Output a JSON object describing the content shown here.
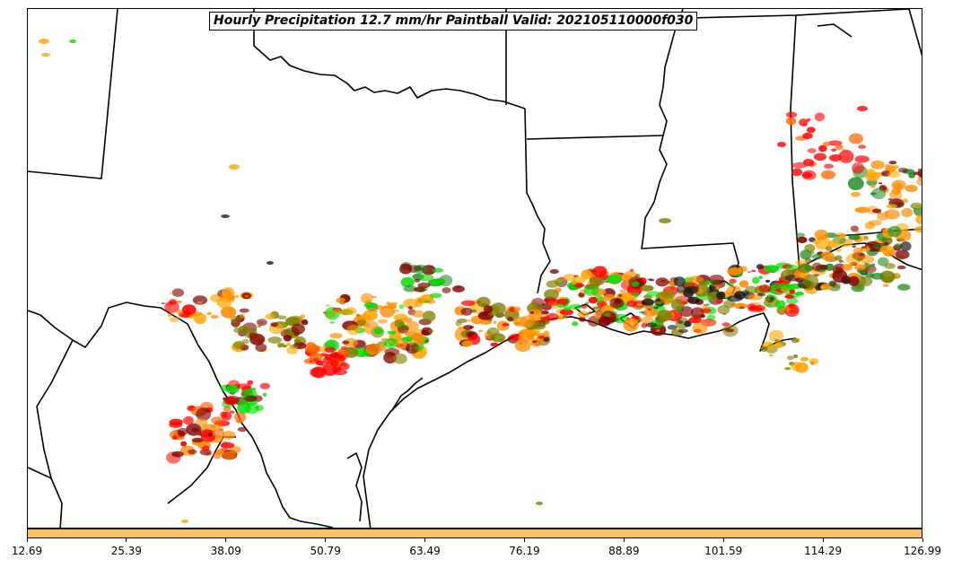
{
  "title": "Hourly Precipitation 12.7 mm/hr Paintball Valid: 202105110000f030",
  "colorbar": {
    "color": "#fbc062",
    "ticks": [
      "12.69",
      "25.39",
      "38.09",
      "50.79",
      "63.49",
      "76.19",
      "88.89",
      "101.59",
      "114.29",
      "126.99"
    ]
  },
  "paint_colors": [
    "#ff8c00",
    "#ff0000",
    "#808000",
    "#800000",
    "#00dd00",
    "#228b22",
    "#ffa500",
    "#ff6600",
    "#1a1a1a"
  ]
}
